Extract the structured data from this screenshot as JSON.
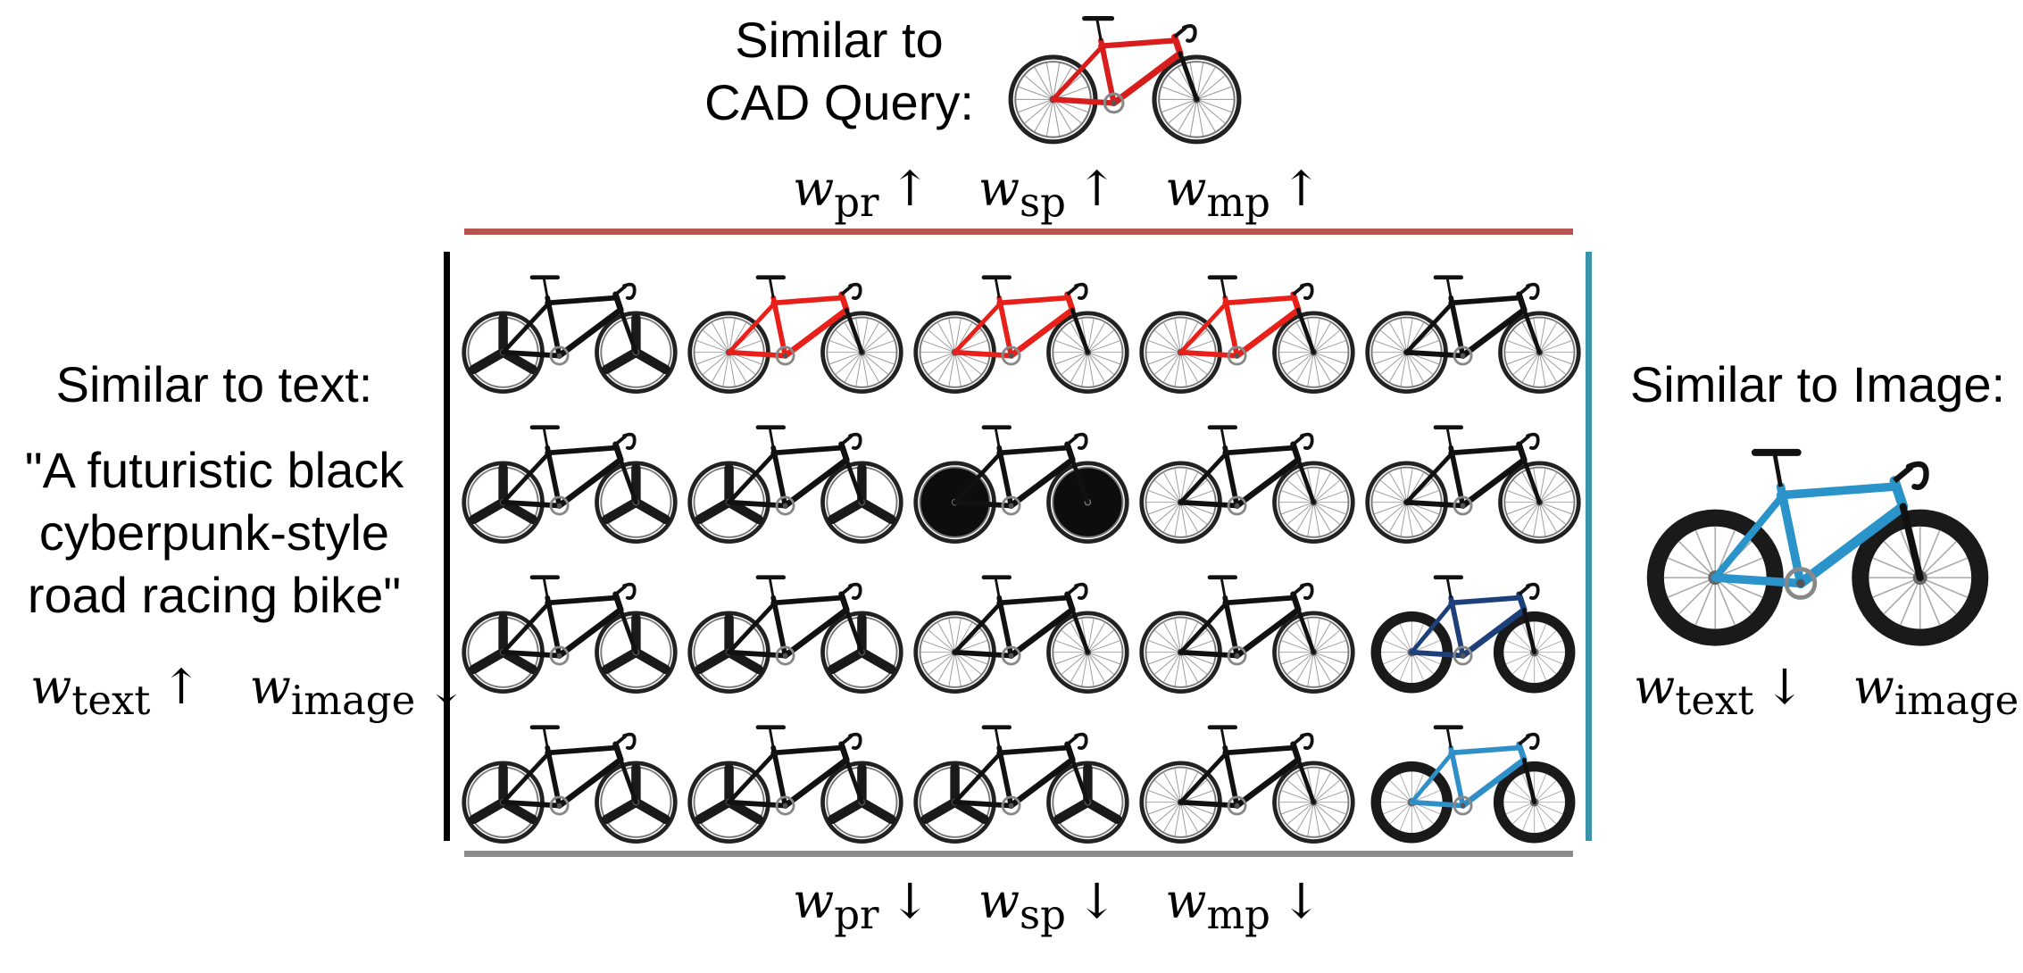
{
  "top": {
    "title_line1": "Similar to",
    "title_line2": "CAD Query:",
    "weights": [
      {
        "w": "w",
        "sub": "pr",
        "arrow": "↑"
      },
      {
        "w": "w",
        "sub": "sp",
        "arrow": "↑"
      },
      {
        "w": "w",
        "sub": "mp",
        "arrow": "↑"
      }
    ],
    "bar_color": "#b85450"
  },
  "left": {
    "title": "Similar to text:",
    "quote_lines": [
      "\"A futuristic black",
      "cyberpunk-style",
      "road racing bike\""
    ],
    "weights": [
      {
        "w": "w",
        "sub": "text",
        "arrow": "↑"
      },
      {
        "w": "w",
        "sub": "image",
        "arrow": "↓"
      }
    ],
    "bar_color": "#000000"
  },
  "right": {
    "title": "Similar to Image:",
    "weights": [
      {
        "w": "w",
        "sub": "text",
        "arrow": "↓"
      },
      {
        "w": "w",
        "sub": "image",
        "arrow": "↑"
      }
    ],
    "bar_color": "#3a93a8"
  },
  "bottom": {
    "weights": [
      {
        "w": "w",
        "sub": "pr",
        "arrow": "↓"
      },
      {
        "w": "w",
        "sub": "sp",
        "arrow": "↓"
      },
      {
        "w": "w",
        "sub": "mp",
        "arrow": "↓"
      }
    ],
    "bar_color": "#8c8c8c"
  },
  "grid": [
    [
      {
        "frame": "#111111",
        "wheel": "tri"
      },
      {
        "frame": "#e8201a",
        "wheel": "spoke"
      },
      {
        "frame": "#e8201a",
        "wheel": "spoke"
      },
      {
        "frame": "#e8201a",
        "wheel": "spoke"
      },
      {
        "frame": "#111111",
        "wheel": "spoke"
      }
    ],
    [
      {
        "frame": "#111111",
        "wheel": "tri"
      },
      {
        "frame": "#111111",
        "wheel": "tri"
      },
      {
        "frame": "#111111",
        "wheel": "disc"
      },
      {
        "frame": "#111111",
        "wheel": "spoke"
      },
      {
        "frame": "#111111",
        "wheel": "spoke"
      }
    ],
    [
      {
        "frame": "#111111",
        "wheel": "tri"
      },
      {
        "frame": "#111111",
        "wheel": "tri"
      },
      {
        "frame": "#111111",
        "wheel": "spoke"
      },
      {
        "frame": "#111111",
        "wheel": "spoke"
      },
      {
        "frame": "#1d3f7a",
        "wheel": "fat"
      }
    ],
    [
      {
        "frame": "#111111",
        "wheel": "tri"
      },
      {
        "frame": "#111111",
        "wheel": "tri"
      },
      {
        "frame": "#111111",
        "wheel": "tri"
      },
      {
        "frame": "#111111",
        "wheel": "spoke"
      },
      {
        "frame": "#2f8fc8",
        "wheel": "fat"
      }
    ]
  ],
  "query_bike": {
    "frame": "#d81d1d",
    "wheel": "spoke"
  },
  "image_bike": {
    "frame": "#2a93c9",
    "wheel": "fat"
  }
}
